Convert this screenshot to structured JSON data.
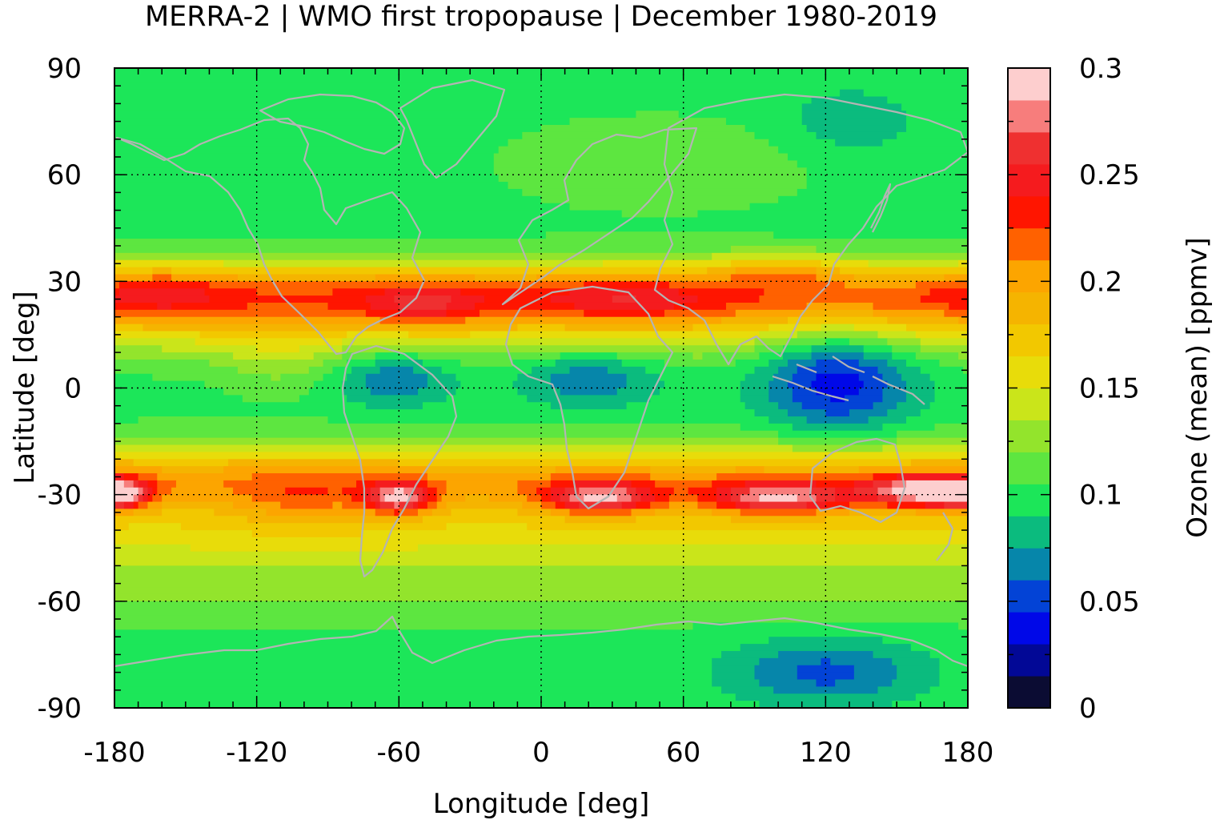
{
  "chart_data": {
    "type": "heatmap",
    "title": "MERRA-2 | WMO first tropopause | December 1980-2019",
    "xlabel": "Longitude [deg]",
    "ylabel": "Latitude [deg]",
    "colorbar_label": "Ozone (mean) [ppmv]",
    "xlim": [
      -180,
      180
    ],
    "ylim": [
      -90,
      90
    ],
    "x_ticks": [
      "-180",
      "-120",
      "-60",
      "0",
      "60",
      "120",
      "180"
    ],
    "y_ticks": [
      "90",
      "60",
      "30",
      "0",
      "-30",
      "-60",
      "-90"
    ],
    "colorbar_range": [
      0,
      0.3
    ],
    "colorbar_ticks": [
      "0.3",
      "0.25",
      "0.2",
      "0.15",
      "0.1",
      "0.05",
      "0"
    ],
    "grid": true,
    "coastlines": true,
    "levels": [
      {
        "value": 0.0,
        "color": "#0b0c33"
      },
      {
        "value": 0.015,
        "color": "#020896"
      },
      {
        "value": 0.03,
        "color": "#0008e8"
      },
      {
        "value": 0.045,
        "color": "#0343d6"
      },
      {
        "value": 0.06,
        "color": "#0686aa"
      },
      {
        "value": 0.075,
        "color": "#0bbb7e"
      },
      {
        "value": 0.09,
        "color": "#1ce659"
      },
      {
        "value": 0.105,
        "color": "#5de640"
      },
      {
        "value": 0.12,
        "color": "#93e42c"
      },
      {
        "value": 0.135,
        "color": "#cae51a"
      },
      {
        "value": 0.15,
        "color": "#e8dc0a"
      },
      {
        "value": 0.165,
        "color": "#f2c800"
      },
      {
        "value": 0.18,
        "color": "#f5b400"
      },
      {
        "value": 0.195,
        "color": "#fca500"
      },
      {
        "value": 0.21,
        "color": "#ff6100"
      },
      {
        "value": 0.225,
        "color": "#ff1500"
      },
      {
        "value": 0.24,
        "color": "#f51b1e"
      },
      {
        "value": 0.255,
        "color": "#ef3030"
      },
      {
        "value": 0.27,
        "color": "#f77d7c"
      },
      {
        "value": 0.285,
        "color": "#fdcece"
      }
    ],
    "features": {
      "background_value": 0.1,
      "bands": [
        {
          "lat": 27,
          "width": 9,
          "value": 0.1
        },
        {
          "lat": 18,
          "width": 10,
          "value": 0.05
        },
        {
          "lat": -26,
          "width": 10,
          "value": 0.1
        },
        {
          "lat": -42,
          "width": 10,
          "value": 0.05
        },
        {
          "lat": -58,
          "width": 8,
          "value": 0.02
        }
      ],
      "blobs": [
        {
          "lon": -160,
          "lat": 27,
          "value": 0.03,
          "wlon": 25,
          "wlat": 6
        },
        {
          "lon": -50,
          "lat": 23,
          "value": 0.04,
          "wlon": 25,
          "wlat": 6
        },
        {
          "lon": 35,
          "lat": 25,
          "value": 0.03,
          "wlon": 35,
          "wlat": 6
        },
        {
          "lon": 100,
          "lat": 33,
          "value": 0.04,
          "wlon": 25,
          "wlat": 4
        },
        {
          "lon": 125,
          "lat": 3,
          "value": -0.065,
          "wlon": 32,
          "wlat": 16
        },
        {
          "lon": -110,
          "lat": 8,
          "value": 0.02,
          "wlon": 25,
          "wlat": 10
        },
        {
          "lon": -62,
          "lat": 3,
          "value": -0.04,
          "wlon": 25,
          "wlat": 8
        },
        {
          "lon": 20,
          "lat": 3,
          "value": -0.04,
          "wlon": 30,
          "wlat": 8
        },
        {
          "lon": -60,
          "lat": -31,
          "value": 0.1,
          "wlon": 14,
          "wlat": 4.5
        },
        {
          "lon": 25,
          "lat": -31,
          "value": 0.1,
          "wlon": 24,
          "wlat": 4.5
        },
        {
          "lon": 100,
          "lat": -31,
          "value": 0.1,
          "wlon": 30,
          "wlat": 4.5
        },
        {
          "lon": 160,
          "lat": -29,
          "value": 0.1,
          "wlon": 25,
          "wlat": 4.5
        },
        {
          "lon": -180,
          "lat": -30,
          "value": 0.1,
          "wlon": 14,
          "wlat": 4
        },
        {
          "lon": -100,
          "lat": -32,
          "value": 0.03,
          "wlon": 30,
          "wlat": 8
        },
        {
          "lon": 50,
          "lat": 63,
          "value": 0.02,
          "wlon": 60,
          "wlat": 12
        },
        {
          "lon": 120,
          "lat": -80,
          "value": -0.045,
          "wlon": 40,
          "wlat": 9
        },
        {
          "lon": 130,
          "lat": 75,
          "value": -0.02,
          "wlon": 30,
          "wlat": 10
        }
      ]
    }
  }
}
